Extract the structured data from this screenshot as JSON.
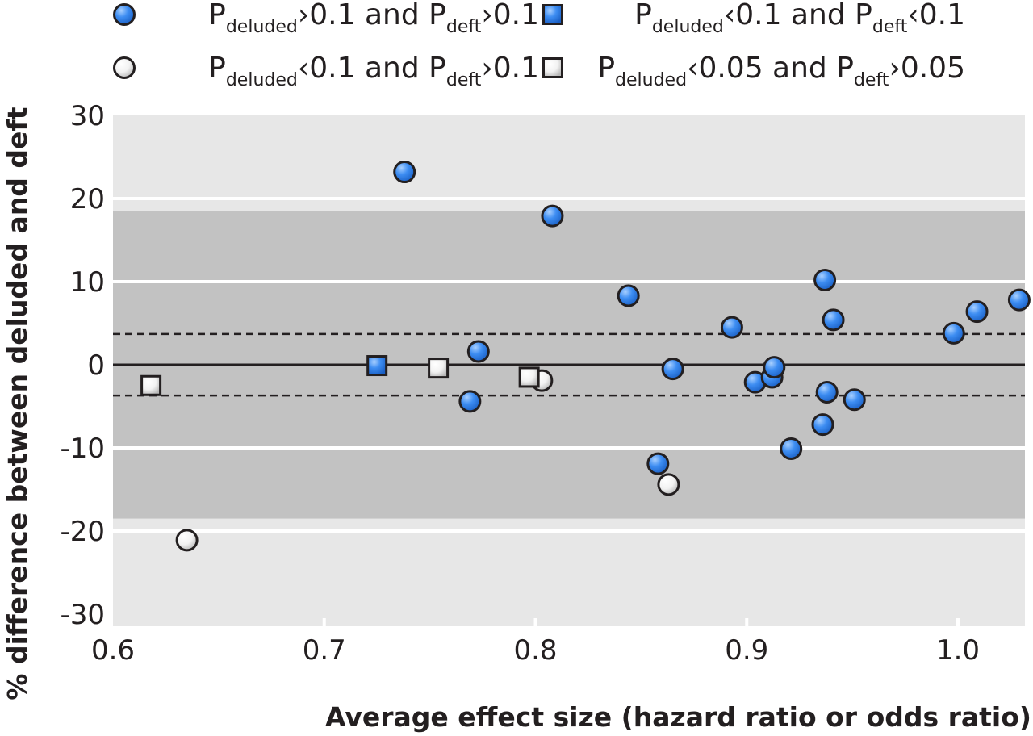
{
  "chart_data": {
    "type": "scatter",
    "xlabel": "Average effect size (hazard ratio or odds ratio)",
    "ylabel": "% difference between deluded and deft",
    "xlim": [
      0.6,
      1.03
    ],
    "ylim": [
      -31,
      30
    ],
    "x_ticks": [
      "0.6",
      "0.7",
      "0.8",
      "0.9",
      "1.0"
    ],
    "x_tick_values": [
      0.6,
      0.7,
      0.8,
      0.9,
      1.0
    ],
    "y_ticks": [
      "30",
      "20",
      "10",
      "0",
      "-10",
      "-20",
      "-30"
    ],
    "y_tick_values": [
      30,
      20,
      10,
      0,
      -10,
      -20,
      -30
    ],
    "reference_lines": {
      "zero": 0,
      "dashed": [
        3.7,
        -3.7
      ],
      "inner_band": [
        -18.5,
        18.5
      ]
    },
    "grid": true,
    "legend_position": "top",
    "colors": {
      "blue": "#3d8df2",
      "white": "#eeeeee",
      "outer_band": "#e7e7e7",
      "inner_band": "#c2c2c2",
      "marker_edge": "#231f20"
    },
    "series": [
      {
        "legend": {
          "p1": "P",
          "s1": "deluded",
          "t1": "›0.1 and P",
          "s2": "deft",
          "t2": "›0.1"
        },
        "marker": "circle",
        "color": "blue",
        "points": [
          {
            "x": 0.738,
            "y": 23.2
          },
          {
            "x": 0.808,
            "y": 17.9
          },
          {
            "x": 0.844,
            "y": 8.3
          },
          {
            "x": 0.773,
            "y": 1.6
          },
          {
            "x": 0.769,
            "y": -4.4
          },
          {
            "x": 0.865,
            "y": -0.5
          },
          {
            "x": 0.858,
            "y": -11.9
          },
          {
            "x": 0.893,
            "y": 4.5
          },
          {
            "x": 0.904,
            "y": -2.1
          },
          {
            "x": 0.912,
            "y": -1.5
          },
          {
            "x": 0.913,
            "y": -0.3
          },
          {
            "x": 0.921,
            "y": -10.1
          },
          {
            "x": 0.937,
            "y": 10.2
          },
          {
            "x": 0.941,
            "y": 5.4
          },
          {
            "x": 0.938,
            "y": -3.3
          },
          {
            "x": 0.936,
            "y": -7.2
          },
          {
            "x": 0.951,
            "y": -4.2
          },
          {
            "x": 0.998,
            "y": 3.8
          },
          {
            "x": 1.009,
            "y": 6.4
          },
          {
            "x": 1.029,
            "y": 7.8
          }
        ]
      },
      {
        "legend": {
          "p1": "P",
          "s1": "deluded",
          "t1": "‹0.1 and P",
          "s2": "deft",
          "t2": "‹0.1"
        },
        "marker": "square",
        "color": "blue",
        "points": [
          {
            "x": 0.725,
            "y": -0.1
          }
        ]
      },
      {
        "legend": {
          "p1": "P",
          "s1": "deluded",
          "t1": "‹0.1 and P",
          "s2": "deft",
          "t2": "›0.1"
        },
        "marker": "circle",
        "color": "white",
        "points": [
          {
            "x": 0.635,
            "y": -21.1
          },
          {
            "x": 0.803,
            "y": -1.9
          },
          {
            "x": 0.863,
            "y": -14.4
          }
        ]
      },
      {
        "legend": {
          "p1": "P",
          "s1": "deluded",
          "t1": "‹0.05 and P",
          "s2": "deft",
          "t2": "›0.05"
        },
        "marker": "square",
        "color": "white",
        "points": [
          {
            "x": 0.618,
            "y": -2.5
          },
          {
            "x": 0.754,
            "y": -0.4
          },
          {
            "x": 0.797,
            "y": -1.5
          }
        ]
      }
    ]
  }
}
